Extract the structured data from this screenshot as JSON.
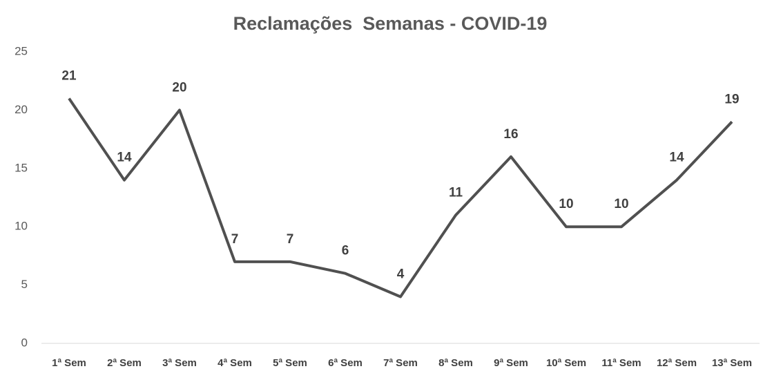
{
  "chart_data": {
    "type": "line",
    "title": "Reclamações  Semanas - COVID-19",
    "categories": [
      "1ª Sem",
      "2ª Sem",
      "3ª Sem",
      "4ª Sem",
      "5ª Sem",
      "6ª Sem",
      "7ª Sem",
      "8ª Sem",
      "9ª Sem",
      "10ª Sem",
      "11ª Sem",
      "12ª Sem",
      "13ª Sem"
    ],
    "values": [
      21,
      14,
      20,
      7,
      7,
      6,
      4,
      11,
      16,
      10,
      10,
      14,
      19
    ],
    "color": "#505050",
    "ylim": [
      0,
      25
    ],
    "yticks": [
      0,
      5,
      10,
      15,
      20,
      25
    ],
    "grid": false
  }
}
